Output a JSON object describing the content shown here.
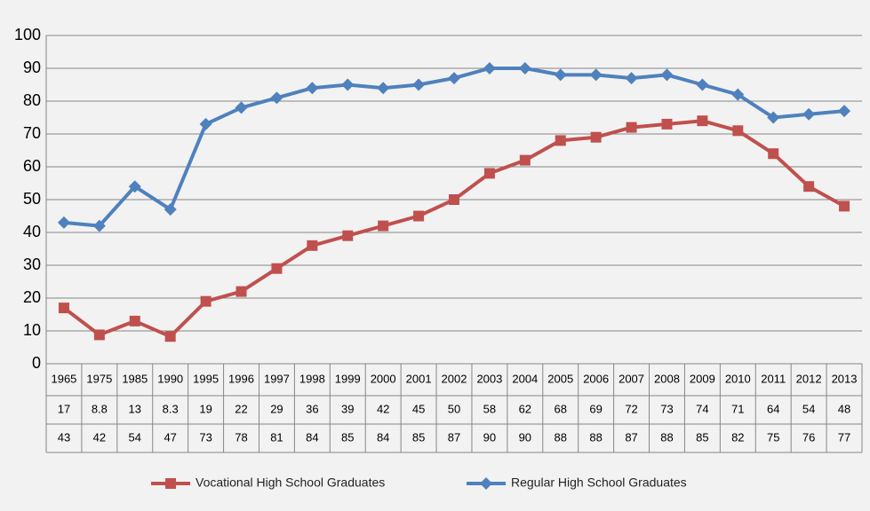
{
  "chart_data": {
    "type": "line",
    "categories": [
      "1965",
      "1975",
      "1985",
      "1990",
      "1995",
      "1996",
      "1997",
      "1998",
      "1999",
      "2000",
      "2001",
      "2002",
      "2003",
      "2004",
      "2005",
      "2006",
      "2007",
      "2008",
      "2009",
      "2010",
      "2011",
      "2012",
      "2013"
    ],
    "series": [
      {
        "name": "Vocational High School Graduates",
        "color": "#c0504d",
        "marker": "square",
        "values": [
          17,
          8.8,
          13,
          8.3,
          19,
          22,
          29,
          36,
          39,
          42,
          45,
          50,
          58,
          62,
          68,
          69,
          72,
          73,
          74,
          71,
          64,
          54,
          48
        ]
      },
      {
        "name": "Regular High School Graduates",
        "color": "#4f81bd",
        "marker": "diamond",
        "values": [
          43,
          42,
          54,
          47,
          73,
          78,
          81,
          84,
          85,
          84,
          85,
          87,
          90,
          90,
          88,
          88,
          87,
          88,
          85,
          82,
          75,
          76,
          77
        ]
      }
    ],
    "ylim": [
      0,
      100
    ],
    "yticks": [
      0,
      10,
      20,
      30,
      40,
      50,
      60,
      70,
      80,
      90,
      100
    ],
    "grid": true,
    "data_table": true,
    "legend": "bottom"
  }
}
